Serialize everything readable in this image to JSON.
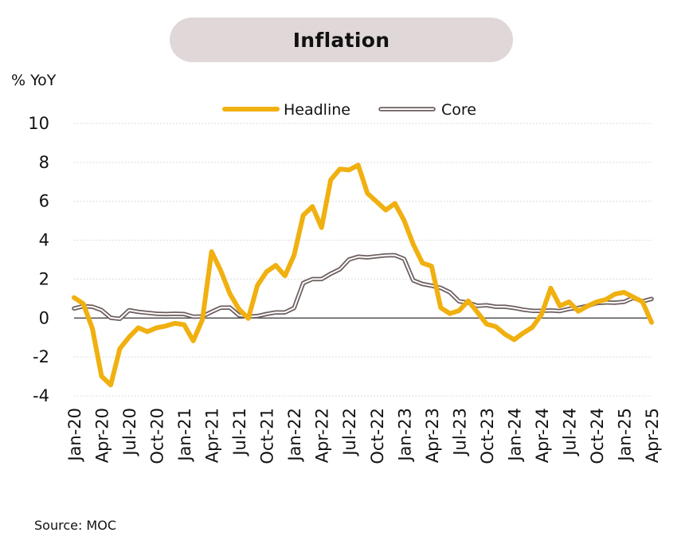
{
  "chart_data": {
    "type": "line",
    "title": "Inflation",
    "ylabel": "% YoY",
    "ylim": [
      -4,
      10
    ],
    "yticks": [
      "10",
      "8",
      "6",
      "4",
      "2",
      "0",
      "-2",
      "-4"
    ],
    "xtick_labels": [
      "Jan-20",
      "Apr-20",
      "Jul-20",
      "Oct-20",
      "Jan-21",
      "Apr-21",
      "Jul-21",
      "Oct-21",
      "Jan-22",
      "Apr-22",
      "Jul-22",
      "Oct-22",
      "Jan-23",
      "Apr-23",
      "Jul-23",
      "Oct-23",
      "Jan-24",
      "Apr-24",
      "Jul-24",
      "Oct-24",
      "Jan-25",
      "Apr-25"
    ],
    "legend_position": "top",
    "grid": "horizontal",
    "x": [
      "Jan-20",
      "Feb-20",
      "Mar-20",
      "Apr-20",
      "May-20",
      "Jun-20",
      "Jul-20",
      "Aug-20",
      "Sep-20",
      "Oct-20",
      "Nov-20",
      "Dec-20",
      "Jan-21",
      "Feb-21",
      "Mar-21",
      "Apr-21",
      "May-21",
      "Jun-21",
      "Jul-21",
      "Aug-21",
      "Sep-21",
      "Oct-21",
      "Nov-21",
      "Dec-21",
      "Jan-22",
      "Feb-22",
      "Mar-22",
      "Apr-22",
      "May-22",
      "Jun-22",
      "Jul-22",
      "Aug-22",
      "Sep-22",
      "Oct-22",
      "Nov-22",
      "Dec-22",
      "Jan-23",
      "Feb-23",
      "Mar-23",
      "Apr-23",
      "May-23",
      "Jun-23",
      "Jul-23",
      "Aug-23",
      "Sep-23",
      "Oct-23",
      "Nov-23",
      "Dec-23",
      "Jan-24",
      "Feb-24",
      "Mar-24",
      "Apr-24",
      "May-24",
      "Jun-24",
      "Jul-24",
      "Aug-24",
      "Sep-24",
      "Oct-24",
      "Nov-24",
      "Dec-24",
      "Jan-25",
      "Feb-25",
      "Mar-25",
      "Apr-25"
    ],
    "series": [
      {
        "name": "Headline",
        "color": "#f0b010",
        "values": [
          1.05,
          0.74,
          -0.54,
          -2.99,
          -3.44,
          -1.57,
          -0.98,
          -0.5,
          -0.7,
          -0.5,
          -0.41,
          -0.27,
          -0.34,
          -1.17,
          -0.08,
          3.41,
          2.44,
          1.25,
          0.45,
          -0.02,
          1.68,
          2.38,
          2.71,
          2.17,
          3.23,
          5.28,
          5.73,
          4.65,
          7.1,
          7.66,
          7.61,
          7.86,
          6.41,
          5.98,
          5.55,
          5.89,
          5.02,
          3.79,
          2.83,
          2.67,
          0.53,
          0.23,
          0.38,
          0.88,
          0.3,
          -0.31,
          -0.44,
          -0.83,
          -1.11,
          -0.77,
          -0.47,
          0.19,
          1.54,
          0.62,
          0.83,
          0.35,
          0.61,
          0.83,
          0.95,
          1.23,
          1.32,
          1.08,
          0.84,
          -0.22
        ]
      },
      {
        "name": "Core",
        "color": "#6e5e5e",
        "values": [
          0.49,
          0.61,
          0.58,
          0.41,
          0.01,
          -0.04,
          0.4,
          0.32,
          0.27,
          0.22,
          0.21,
          0.22,
          0.21,
          0.07,
          0.08,
          0.32,
          0.53,
          0.54,
          0.14,
          0.07,
          0.1,
          0.21,
          0.29,
          0.29,
          0.52,
          1.8,
          2.0,
          2.0,
          2.28,
          2.51,
          3.01,
          3.15,
          3.12,
          3.17,
          3.22,
          3.23,
          3.04,
          1.93,
          1.75,
          1.66,
          1.55,
          1.32,
          0.86,
          0.79,
          0.63,
          0.66,
          0.58,
          0.58,
          0.52,
          0.43,
          0.37,
          0.37,
          0.39,
          0.36,
          0.47,
          0.52,
          0.62,
          0.77,
          0.8,
          0.79,
          0.83,
          1.04,
          0.86,
          0.98
        ]
      }
    ]
  },
  "source_text": "Source: MOC"
}
